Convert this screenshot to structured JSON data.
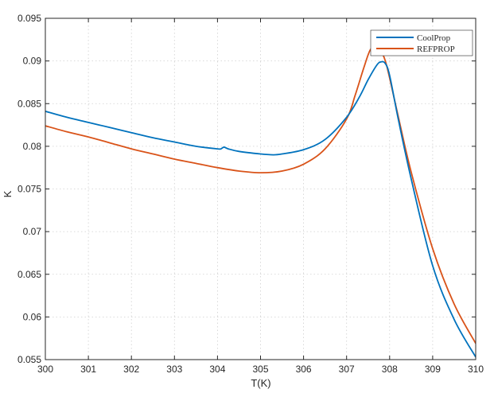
{
  "chart_data": {
    "type": "line",
    "xlabel": "T(K)",
    "ylabel": "K",
    "xlim": [
      300,
      310
    ],
    "ylim": [
      0.055,
      0.095
    ],
    "xticks": [
      300,
      301,
      302,
      303,
      304,
      305,
      306,
      307,
      308,
      309,
      310
    ],
    "xtick_labels": [
      "300",
      "301",
      "302",
      "303",
      "304",
      "305",
      "306",
      "307",
      "308",
      "309",
      "310"
    ],
    "yticks": [
      0.055,
      0.06,
      0.065,
      0.07,
      0.075,
      0.08,
      0.085,
      0.09,
      0.095
    ],
    "ytick_labels": [
      "0.055",
      "0.06",
      "0.065",
      "0.07",
      "0.075",
      "0.08",
      "0.085",
      "0.09",
      "0.095"
    ],
    "grid": true,
    "legend_position": "top-right",
    "series": [
      {
        "name": "CoolProp",
        "color": "#0072BD",
        "x": [
          300,
          300.5,
          301,
          301.5,
          302,
          302.5,
          303,
          303.5,
          304,
          304.08,
          304.15,
          304.25,
          304.5,
          305,
          305.3,
          305.5,
          306,
          306.5,
          307,
          307.3,
          307.5,
          307.7,
          307.8,
          307.9,
          308,
          308.2,
          308.5,
          309,
          309.5,
          310
        ],
        "y": [
          0.0841,
          0.0834,
          0.0828,
          0.0822,
          0.0816,
          0.081,
          0.0805,
          0.08,
          0.0797,
          0.0797,
          0.0799,
          0.0797,
          0.0794,
          0.0791,
          0.079,
          0.0791,
          0.0796,
          0.0808,
          0.0834,
          0.0858,
          0.0878,
          0.0895,
          0.0899,
          0.0897,
          0.0883,
          0.0832,
          0.0762,
          0.066,
          0.0597,
          0.0553
        ]
      },
      {
        "name": "REFPROP",
        "color": "#D95319",
        "x": [
          300,
          300.5,
          301,
          301.5,
          302,
          302.5,
          303,
          303.5,
          304,
          304.5,
          305,
          305.5,
          306,
          306.5,
          307,
          307.2,
          307.4,
          307.55,
          307.7,
          307.8,
          307.9,
          308,
          308.2,
          308.5,
          309,
          309.5,
          310
        ],
        "y": [
          0.0824,
          0.0817,
          0.0811,
          0.0804,
          0.0797,
          0.0791,
          0.0785,
          0.078,
          0.0775,
          0.0771,
          0.0769,
          0.0771,
          0.0779,
          0.0797,
          0.0832,
          0.086,
          0.0892,
          0.0913,
          0.0918,
          0.0912,
          0.09,
          0.088,
          0.0835,
          0.077,
          0.068,
          0.0615,
          0.0569
        ]
      }
    ]
  }
}
